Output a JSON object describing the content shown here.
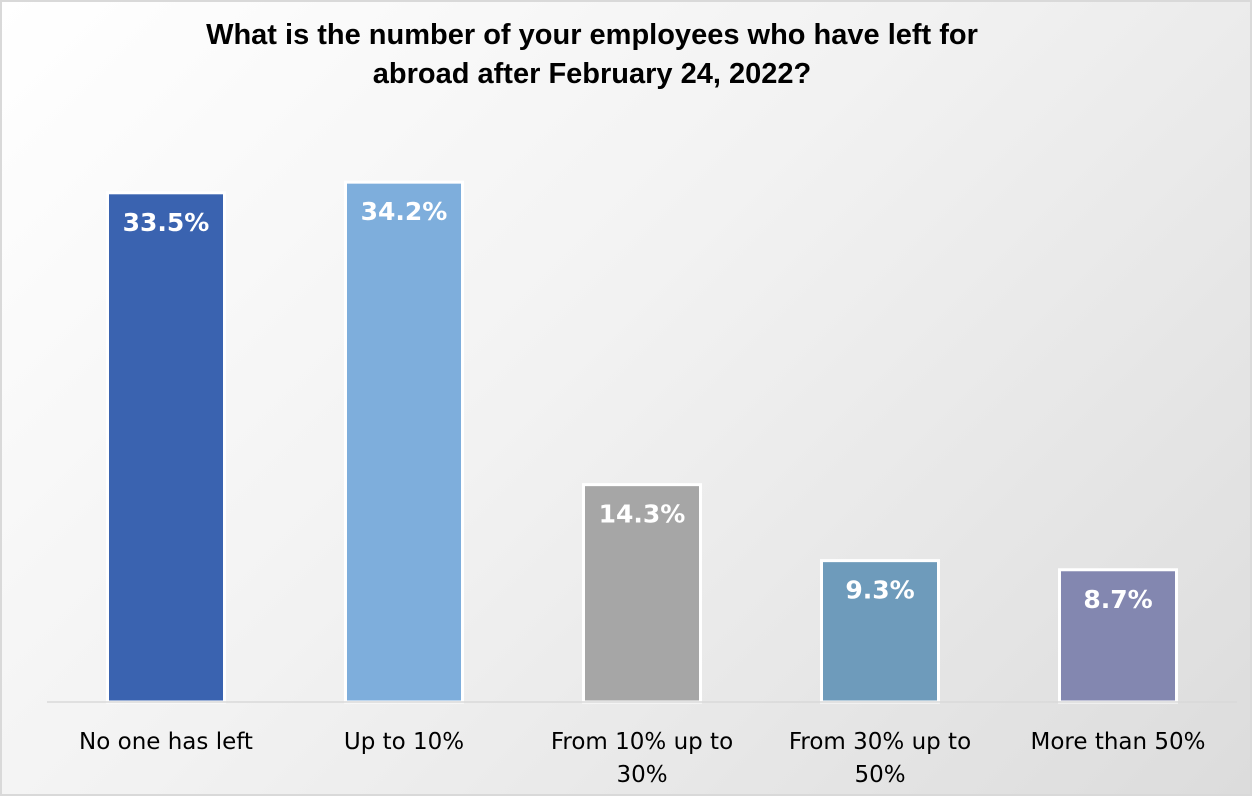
{
  "chart_data": {
    "type": "bar",
    "title": "What is the number of your employees who have left for\nabroad after February 24, 2022?",
    "categories": [
      [
        "No one has left"
      ],
      [
        "Up to 10%"
      ],
      [
        "From 10% up to",
        "30%"
      ],
      [
        "From 30% up to",
        "50%"
      ],
      [
        "More than 50%"
      ]
    ],
    "values": [
      33.5,
      34.2,
      14.3,
      9.3,
      8.7
    ],
    "value_labels": [
      "33.5%",
      "34.2%",
      "14.3%",
      "9.3%",
      "8.7%"
    ],
    "colors": [
      "#3a63b0",
      "#7eaedc",
      "#a6a6a6",
      "#6e9bbb",
      "#8387b0"
    ],
    "ylim": [
      0,
      35
    ],
    "grid": false,
    "legend": "none"
  }
}
